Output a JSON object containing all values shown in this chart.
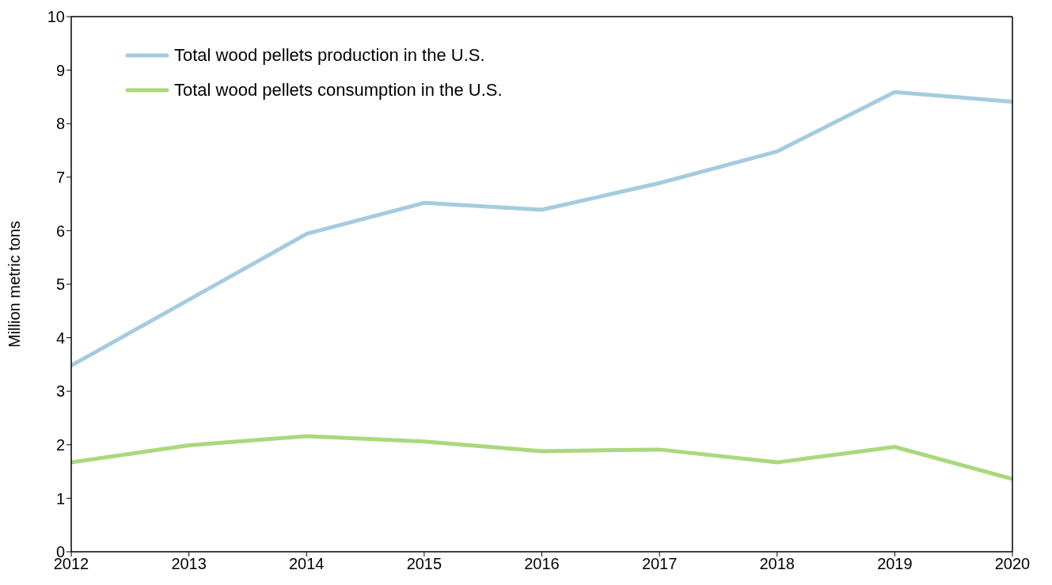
{
  "chart_data": {
    "type": "line",
    "ylabel": "Million metric tons",
    "x": [
      2012,
      2013,
      2014,
      2015,
      2016,
      2017,
      2018,
      2019,
      2020
    ],
    "series": [
      {
        "name": "Total wood pellets production in the U.S.",
        "color": "#a5cbe0",
        "values": [
          3.48,
          4.71,
          5.94,
          6.52,
          6.39,
          6.89,
          7.48,
          8.59,
          8.41
        ]
      },
      {
        "name": "Total wood pellets consumption in the U.S.",
        "color": "#a9d97c",
        "values": [
          1.67,
          1.99,
          2.16,
          2.06,
          1.88,
          1.91,
          1.67,
          1.96,
          1.36
        ]
      }
    ],
    "xlim": [
      2012,
      2020
    ],
    "xticks": [
      2012,
      2013,
      2014,
      2015,
      2016,
      2017,
      2018,
      2019,
      2020
    ],
    "ylim": [
      0,
      10
    ],
    "yticks": [
      0,
      1,
      2,
      3,
      4,
      5,
      6,
      7,
      8,
      9,
      10
    ],
    "grid": false,
    "legend": "top left",
    "marker": "none",
    "line_style": "solid"
  }
}
